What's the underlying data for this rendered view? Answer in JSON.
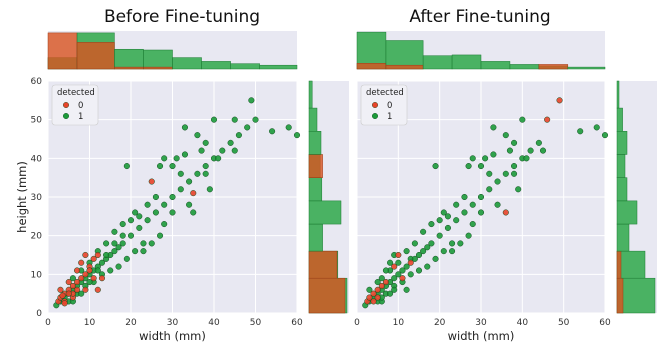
{
  "chart_data": [
    {
      "type": "scatter",
      "title": "Before Fine-tuning",
      "xlabel": "width (mm)",
      "ylabel": "height (mm)",
      "xlim": [
        0,
        60
      ],
      "ylim": [
        0,
        60
      ],
      "xticks": [
        "0",
        "10",
        "20",
        "30",
        "40",
        "50",
        "60"
      ],
      "yticks": [
        "0",
        "10",
        "20",
        "30",
        "40",
        "50",
        "60"
      ],
      "grid": true,
      "legend": {
        "title": "detected",
        "position": "top-left"
      },
      "series": [
        {
          "name": "0",
          "color": "#e8442a",
          "points": [
            [
              2.5,
              3
            ],
            [
              3,
              4
            ],
            [
              4,
              5
            ],
            [
              5,
              6
            ],
            [
              3.5,
              4.5
            ],
            [
              6,
              7
            ],
            [
              7,
              8
            ],
            [
              8,
              9
            ],
            [
              9,
              10
            ],
            [
              10,
              12
            ],
            [
              11,
              14
            ],
            [
              12,
              15
            ],
            [
              13,
              9
            ],
            [
              9,
              6
            ],
            [
              6,
              4
            ],
            [
              4,
              3
            ],
            [
              5,
              8
            ],
            [
              7,
              11
            ],
            [
              8,
              13
            ],
            [
              10,
              11
            ],
            [
              25,
              34
            ],
            [
              35,
              31
            ],
            [
              4,
              2.5
            ],
            [
              6,
              5
            ],
            [
              3,
              6
            ],
            [
              11,
              9
            ],
            [
              7,
              6
            ],
            [
              9,
              15
            ],
            [
              12,
              6
            ],
            [
              5,
              5
            ]
          ]
        },
        {
          "name": "1",
          "color": "#1c9a3a",
          "points": [
            [
              2,
              2
            ],
            [
              3,
              3
            ],
            [
              4,
              4
            ],
            [
              5,
              5
            ],
            [
              6,
              6
            ],
            [
              7,
              7
            ],
            [
              8,
              8
            ],
            [
              9,
              9
            ],
            [
              10,
              10
            ],
            [
              11,
              11
            ],
            [
              12,
              12
            ],
            [
              13,
              13
            ],
            [
              14,
              14
            ],
            [
              15,
              15
            ],
            [
              16,
              16
            ],
            [
              17,
              17
            ],
            [
              18,
              18
            ],
            [
              20,
              20
            ],
            [
              22,
              22
            ],
            [
              24,
              24
            ],
            [
              26,
              26
            ],
            [
              28,
              28
            ],
            [
              30,
              30
            ],
            [
              32,
              32
            ],
            [
              34,
              34
            ],
            [
              36,
              36
            ],
            [
              38,
              38
            ],
            [
              40,
              40
            ],
            [
              42,
              42
            ],
            [
              44,
              44
            ],
            [
              46,
              46
            ],
            [
              48,
              48
            ],
            [
              50,
              50
            ],
            [
              6,
              9
            ],
            [
              8,
              11
            ],
            [
              10,
              13
            ],
            [
              12,
              16
            ],
            [
              14,
              18
            ],
            [
              16,
              21
            ],
            [
              18,
              23
            ],
            [
              5,
              3
            ],
            [
              7,
              5
            ],
            [
              9,
              7
            ],
            [
              11,
              8
            ],
            [
              13,
              10
            ],
            [
              15,
              11
            ],
            [
              17,
              12
            ],
            [
              19,
              14
            ],
            [
              21,
              16
            ],
            [
              23,
              18
            ],
            [
              19,
              38
            ],
            [
              27,
              38
            ],
            [
              30,
              38
            ],
            [
              33,
              48
            ],
            [
              36,
              46
            ],
            [
              40,
              50
            ],
            [
              45,
              50
            ],
            [
              49,
              55
            ],
            [
              54,
              47
            ],
            [
              58,
              48
            ],
            [
              60,
              46
            ],
            [
              31,
              40
            ],
            [
              33,
              41
            ],
            [
              37,
              42
            ],
            [
              38,
              44
            ],
            [
              41,
              40
            ],
            [
              45,
              42
            ],
            [
              28,
              40
            ],
            [
              32,
              36
            ],
            [
              34,
              28
            ],
            [
              35,
              26
            ],
            [
              38,
              36
            ],
            [
              39,
              32
            ],
            [
              30,
              26
            ],
            [
              28,
              23
            ],
            [
              27,
              20
            ],
            [
              25,
              18
            ],
            [
              23,
              16
            ],
            [
              22,
              25
            ],
            [
              24,
              28
            ],
            [
              26,
              30
            ],
            [
              20,
              24
            ],
            [
              21,
              26
            ],
            [
              18,
              20
            ],
            [
              16,
              18
            ],
            [
              14,
              15
            ],
            [
              12,
              11
            ],
            [
              10,
              8
            ],
            [
              8,
              5
            ],
            [
              6,
              3
            ]
          ]
        }
      ],
      "top_histogram": {
        "bins": [
          0,
          7,
          16,
          23,
          30,
          37,
          44,
          51,
          60
        ],
        "detected_1": [
          0.3,
          0.95,
          0.52,
          0.5,
          0.3,
          0.2,
          0.14,
          0.1
        ],
        "detected_0": [
          0.95,
          0.7,
          0.05,
          0.05,
          0.0,
          0.0,
          0.0,
          0.0
        ]
      },
      "right_histogram": {
        "bins": [
          0,
          9,
          16,
          23,
          29,
          35,
          41,
          47,
          53,
          60
        ],
        "detected_1": [
          0.95,
          0.72,
          0.34,
          0.8,
          0.32,
          0.28,
          0.3,
          0.2,
          0.08
        ],
        "detected_0": [
          0.9,
          0.7,
          0.0,
          0.0,
          0.0,
          0.34,
          0.0,
          0.0,
          0.0
        ]
      }
    },
    {
      "type": "scatter",
      "title": "After Fine-tuning",
      "xlabel": "width (mm)",
      "ylabel": "",
      "xlim": [
        0,
        60
      ],
      "ylim": [
        0,
        60
      ],
      "xticks": [
        "0",
        "10",
        "20",
        "30",
        "40",
        "50",
        "60"
      ],
      "yticks": [],
      "grid": true,
      "legend": {
        "title": "detected",
        "position": "top-left"
      },
      "series": [
        {
          "name": "0",
          "color": "#e8442a",
          "points": [
            [
              2.5,
              3
            ],
            [
              3,
              4
            ],
            [
              4,
              5
            ],
            [
              5,
              6
            ],
            [
              6,
              7
            ],
            [
              7,
              8
            ],
            [
              9,
              12
            ],
            [
              4,
              3
            ],
            [
              5,
              4
            ],
            [
              46,
              50
            ],
            [
              49,
              55
            ],
            [
              36,
              26
            ],
            [
              10,
              15
            ],
            [
              13,
              13
            ],
            [
              11,
              9
            ]
          ]
        },
        {
          "name": "1",
          "color": "#1c9a3a",
          "points": [
            [
              2,
              2
            ],
            [
              3,
              3
            ],
            [
              4,
              4
            ],
            [
              5,
              5
            ],
            [
              6,
              6
            ],
            [
              7,
              7
            ],
            [
              8,
              8
            ],
            [
              9,
              9
            ],
            [
              10,
              10
            ],
            [
              11,
              11
            ],
            [
              12,
              12
            ],
            [
              13,
              14
            ],
            [
              14,
              14
            ],
            [
              15,
              15
            ],
            [
              16,
              16
            ],
            [
              17,
              17
            ],
            [
              18,
              18
            ],
            [
              20,
              20
            ],
            [
              22,
              22
            ],
            [
              24,
              24
            ],
            [
              26,
              26
            ],
            [
              28,
              28
            ],
            [
              30,
              30
            ],
            [
              32,
              32
            ],
            [
              34,
              34
            ],
            [
              36,
              36
            ],
            [
              38,
              38
            ],
            [
              40,
              40
            ],
            [
              42,
              42
            ],
            [
              44,
              44
            ],
            [
              6,
              9
            ],
            [
              8,
              11
            ],
            [
              10,
              13
            ],
            [
              12,
              16
            ],
            [
              14,
              18
            ],
            [
              16,
              21
            ],
            [
              18,
              23
            ],
            [
              5,
              3
            ],
            [
              7,
              5
            ],
            [
              9,
              7
            ],
            [
              11,
              8
            ],
            [
              13,
              10
            ],
            [
              15,
              11
            ],
            [
              17,
              12
            ],
            [
              19,
              14
            ],
            [
              21,
              16
            ],
            [
              23,
              18
            ],
            [
              19,
              38
            ],
            [
              27,
              38
            ],
            [
              30,
              38
            ],
            [
              33,
              48
            ],
            [
              36,
              46
            ],
            [
              40,
              50
            ],
            [
              54,
              47
            ],
            [
              58,
              48
            ],
            [
              60,
              46
            ],
            [
              31,
              40
            ],
            [
              33,
              41
            ],
            [
              37,
              42
            ],
            [
              38,
              44
            ],
            [
              41,
              40
            ],
            [
              45,
              42
            ],
            [
              28,
              40
            ],
            [
              32,
              36
            ],
            [
              34,
              28
            ],
            [
              38,
              36
            ],
            [
              39,
              32
            ],
            [
              30,
              26
            ],
            [
              28,
              23
            ],
            [
              27,
              20
            ],
            [
              25,
              18
            ],
            [
              23,
              16
            ],
            [
              22,
              25
            ],
            [
              24,
              28
            ],
            [
              26,
              30
            ],
            [
              20,
              24
            ],
            [
              21,
              26
            ],
            [
              8,
              5
            ],
            [
              6,
              3
            ],
            [
              7,
              11
            ],
            [
              8,
              13
            ],
            [
              5,
              8
            ],
            [
              9,
              6
            ],
            [
              12,
              6
            ],
            [
              9,
              15
            ],
            [
              3,
              6
            ],
            [
              6,
              4
            ]
          ]
        }
      ],
      "top_histogram": {
        "bins": [
          0,
          7,
          16,
          23,
          30,
          37,
          44,
          51,
          60
        ],
        "detected_1": [
          0.97,
          0.75,
          0.35,
          0.37,
          0.2,
          0.12,
          0.08,
          0.05
        ],
        "detected_0": [
          0.15,
          0.1,
          0.0,
          0.0,
          0.0,
          0.0,
          0.12,
          0.0
        ]
      },
      "right_histogram": {
        "bins": [
          0,
          9,
          16,
          23,
          29,
          35,
          41,
          47,
          53,
          60
        ],
        "detected_1": [
          0.95,
          0.7,
          0.3,
          0.5,
          0.25,
          0.2,
          0.25,
          0.14,
          0.05
        ],
        "detected_0": [
          0.15,
          0.1,
          0.0,
          0.0,
          0.0,
          0.0,
          0.0,
          0.0,
          0.0
        ]
      }
    }
  ]
}
